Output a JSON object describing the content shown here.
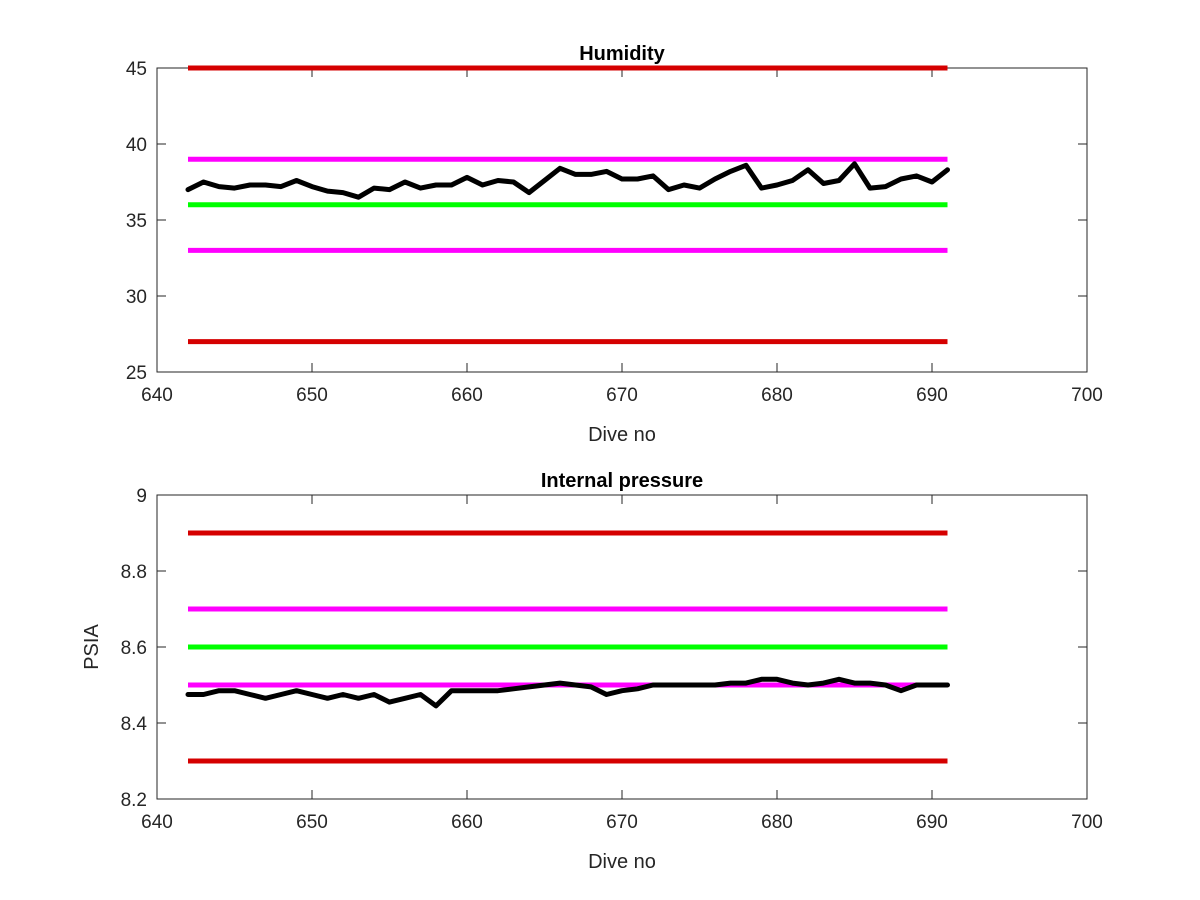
{
  "chart_data": [
    {
      "type": "line",
      "title": "Humidity",
      "xlabel": "Dive no",
      "ylabel": "",
      "xlim": [
        640,
        700
      ],
      "ylim": [
        25,
        45
      ],
      "xticks": [
        640,
        650,
        660,
        670,
        680,
        690,
        700
      ],
      "yticks": [
        25,
        30,
        35,
        40,
        45
      ],
      "grid": false,
      "legend": "none",
      "reference_lines": [
        {
          "y": 45,
          "x": [
            642,
            691
          ],
          "color": "#d50000"
        },
        {
          "y": 39,
          "x": [
            642,
            691
          ],
          "color": "#ff00ff"
        },
        {
          "y": 36,
          "x": [
            642,
            691
          ],
          "color": "#00ff00"
        },
        {
          "y": 33,
          "x": [
            642,
            691
          ],
          "color": "#ff00ff"
        },
        {
          "y": 27,
          "x": [
            642,
            691
          ],
          "color": "#d50000"
        }
      ],
      "series": [
        {
          "color": "#000000",
          "x": [
            642,
            643,
            644,
            645,
            646,
            647,
            648,
            649,
            650,
            651,
            652,
            653,
            654,
            655,
            656,
            657,
            658,
            659,
            660,
            661,
            662,
            663,
            664,
            665,
            666,
            667,
            668,
            669,
            670,
            671,
            672,
            673,
            674,
            675,
            676,
            677,
            678,
            679,
            680,
            681,
            682,
            683,
            684,
            685,
            686,
            687,
            688,
            689,
            690,
            691
          ],
          "values": [
            37.0,
            37.5,
            37.2,
            37.1,
            37.3,
            37.3,
            37.2,
            37.6,
            37.2,
            36.9,
            36.8,
            36.5,
            37.1,
            37.0,
            37.5,
            37.1,
            37.3,
            37.3,
            37.8,
            37.3,
            37.6,
            37.5,
            36.8,
            37.6,
            38.4,
            38.0,
            38.0,
            38.2,
            37.7,
            37.7,
            37.9,
            37.0,
            37.3,
            37.1,
            37.7,
            38.2,
            38.6,
            37.1,
            37.3,
            37.6,
            38.3,
            37.4,
            37.6,
            38.7,
            37.1,
            37.2,
            37.7,
            37.9,
            37.5,
            38.3
          ]
        }
      ]
    },
    {
      "type": "line",
      "title": "Internal pressure",
      "xlabel": "Dive no",
      "ylabel": "PSIA",
      "xlim": [
        640,
        700
      ],
      "ylim": [
        8.2,
        9
      ],
      "xticks": [
        640,
        650,
        660,
        670,
        680,
        690,
        700
      ],
      "yticks": [
        8.2,
        8.4,
        8.6,
        8.8,
        9
      ],
      "ytick_labels": [
        "8.2",
        "8.4",
        "8.6",
        "8.8",
        "9"
      ],
      "grid": false,
      "legend": "none",
      "reference_lines": [
        {
          "y": 8.9,
          "x": [
            642,
            691
          ],
          "color": "#d50000"
        },
        {
          "y": 8.7,
          "x": [
            642,
            691
          ],
          "color": "#ff00ff"
        },
        {
          "y": 8.6,
          "x": [
            642,
            691
          ],
          "color": "#00ff00"
        },
        {
          "y": 8.5,
          "x": [
            642,
            691
          ],
          "color": "#ff00ff"
        },
        {
          "y": 8.3,
          "x": [
            642,
            691
          ],
          "color": "#d50000"
        }
      ],
      "series": [
        {
          "color": "#000000",
          "x": [
            642,
            643,
            644,
            645,
            646,
            647,
            648,
            649,
            650,
            651,
            652,
            653,
            654,
            655,
            656,
            657,
            658,
            659,
            660,
            661,
            662,
            663,
            664,
            665,
            666,
            667,
            668,
            669,
            670,
            671,
            672,
            673,
            674,
            675,
            676,
            677,
            678,
            679,
            680,
            681,
            682,
            683,
            684,
            685,
            686,
            687,
            688,
            689,
            690,
            691
          ],
          "values": [
            8.475,
            8.475,
            8.485,
            8.485,
            8.475,
            8.465,
            8.475,
            8.485,
            8.475,
            8.465,
            8.475,
            8.465,
            8.475,
            8.455,
            8.465,
            8.475,
            8.445,
            8.485,
            8.485,
            8.485,
            8.485,
            8.49,
            8.495,
            8.5,
            8.505,
            8.5,
            8.495,
            8.475,
            8.485,
            8.49,
            8.5,
            8.5,
            8.5,
            8.5,
            8.5,
            8.505,
            8.505,
            8.515,
            8.515,
            8.505,
            8.5,
            8.505,
            8.515,
            8.505,
            8.505,
            8.5,
            8.485,
            8.5,
            8.5,
            8.5
          ]
        }
      ]
    }
  ]
}
